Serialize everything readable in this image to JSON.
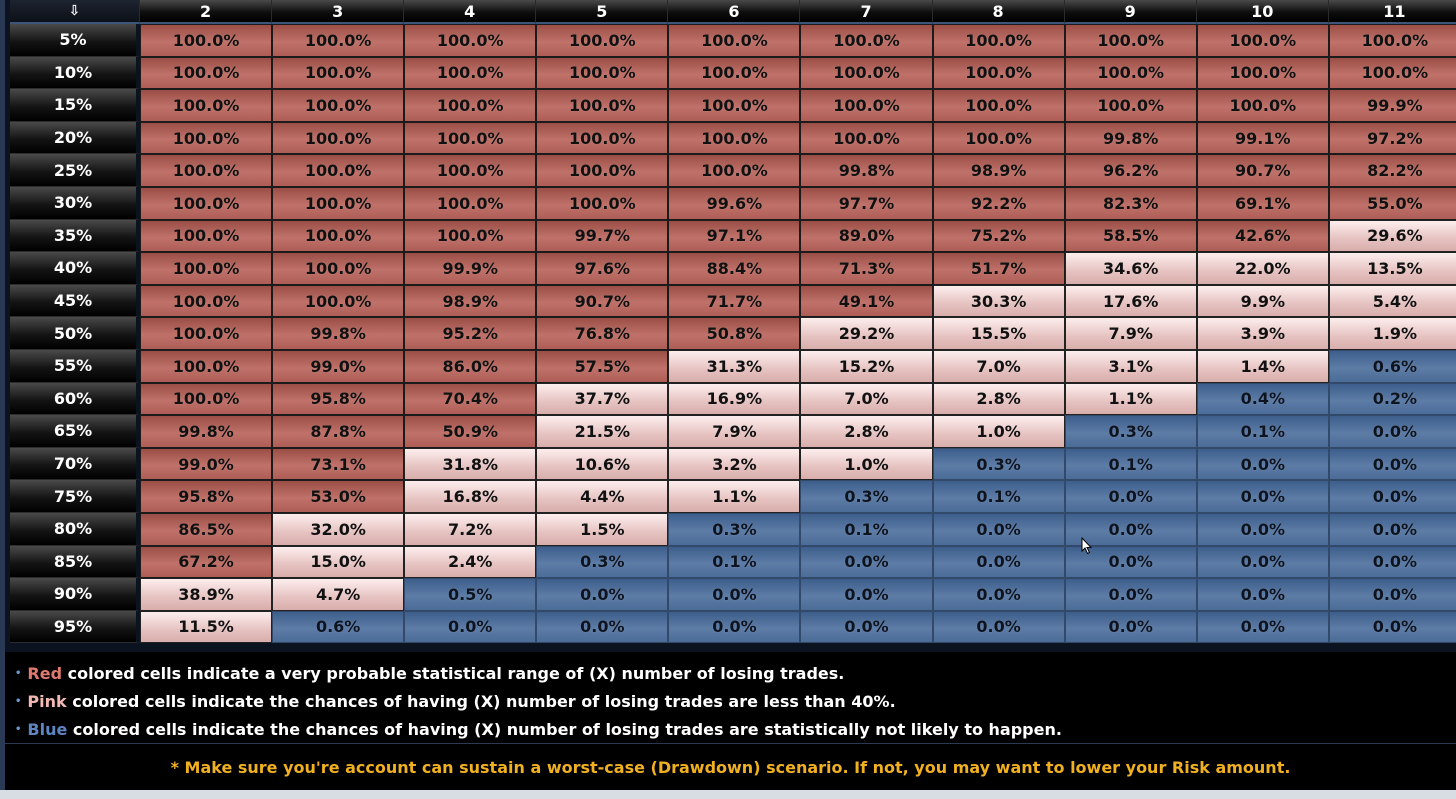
{
  "corner_label": "⇩",
  "columns": [
    "2",
    "3",
    "4",
    "5",
    "6",
    "7",
    "8",
    "9",
    "10",
    "11"
  ],
  "rows": [
    {
      "label": "5%",
      "cells": [
        "100.0%",
        "100.0%",
        "100.0%",
        "100.0%",
        "100.0%",
        "100.0%",
        "100.0%",
        "100.0%",
        "100.0%",
        "100.0%"
      ],
      "zones": [
        "r",
        "r",
        "r",
        "r",
        "r",
        "r",
        "r",
        "r",
        "r",
        "r"
      ]
    },
    {
      "label": "10%",
      "cells": [
        "100.0%",
        "100.0%",
        "100.0%",
        "100.0%",
        "100.0%",
        "100.0%",
        "100.0%",
        "100.0%",
        "100.0%",
        "100.0%"
      ],
      "zones": [
        "r",
        "r",
        "r",
        "r",
        "r",
        "r",
        "r",
        "r",
        "r",
        "r"
      ]
    },
    {
      "label": "15%",
      "cells": [
        "100.0%",
        "100.0%",
        "100.0%",
        "100.0%",
        "100.0%",
        "100.0%",
        "100.0%",
        "100.0%",
        "100.0%",
        "99.9%"
      ],
      "zones": [
        "r",
        "r",
        "r",
        "r",
        "r",
        "r",
        "r",
        "r",
        "r",
        "r"
      ]
    },
    {
      "label": "20%",
      "cells": [
        "100.0%",
        "100.0%",
        "100.0%",
        "100.0%",
        "100.0%",
        "100.0%",
        "100.0%",
        "99.8%",
        "99.1%",
        "97.2%"
      ],
      "zones": [
        "r",
        "r",
        "r",
        "r",
        "r",
        "r",
        "r",
        "r",
        "r",
        "r"
      ]
    },
    {
      "label": "25%",
      "cells": [
        "100.0%",
        "100.0%",
        "100.0%",
        "100.0%",
        "100.0%",
        "99.8%",
        "98.9%",
        "96.2%",
        "90.7%",
        "82.2%"
      ],
      "zones": [
        "r",
        "r",
        "r",
        "r",
        "r",
        "r",
        "r",
        "r",
        "r",
        "r"
      ]
    },
    {
      "label": "30%",
      "cells": [
        "100.0%",
        "100.0%",
        "100.0%",
        "100.0%",
        "99.6%",
        "97.7%",
        "92.2%",
        "82.3%",
        "69.1%",
        "55.0%"
      ],
      "zones": [
        "r",
        "r",
        "r",
        "r",
        "r",
        "r",
        "r",
        "r",
        "r",
        "r"
      ]
    },
    {
      "label": "35%",
      "cells": [
        "100.0%",
        "100.0%",
        "100.0%",
        "99.7%",
        "97.1%",
        "89.0%",
        "75.2%",
        "58.5%",
        "42.6%",
        "29.6%"
      ],
      "zones": [
        "r",
        "r",
        "r",
        "r",
        "r",
        "r",
        "r",
        "r",
        "r",
        "p"
      ]
    },
    {
      "label": "40%",
      "cells": [
        "100.0%",
        "100.0%",
        "99.9%",
        "97.6%",
        "88.4%",
        "71.3%",
        "51.7%",
        "34.6%",
        "22.0%",
        "13.5%"
      ],
      "zones": [
        "r",
        "r",
        "r",
        "r",
        "r",
        "r",
        "r",
        "p",
        "p",
        "p"
      ]
    },
    {
      "label": "45%",
      "cells": [
        "100.0%",
        "100.0%",
        "98.9%",
        "90.7%",
        "71.7%",
        "49.1%",
        "30.3%",
        "17.6%",
        "9.9%",
        "5.4%"
      ],
      "zones": [
        "r",
        "r",
        "r",
        "r",
        "r",
        "r",
        "p",
        "p",
        "p",
        "p"
      ]
    },
    {
      "label": "50%",
      "cells": [
        "100.0%",
        "99.8%",
        "95.2%",
        "76.8%",
        "50.8%",
        "29.2%",
        "15.5%",
        "7.9%",
        "3.9%",
        "1.9%"
      ],
      "zones": [
        "r",
        "r",
        "r",
        "r",
        "r",
        "p",
        "p",
        "p",
        "p",
        "p"
      ]
    },
    {
      "label": "55%",
      "cells": [
        "100.0%",
        "99.0%",
        "86.0%",
        "57.5%",
        "31.3%",
        "15.2%",
        "7.0%",
        "3.1%",
        "1.4%",
        "0.6%"
      ],
      "zones": [
        "r",
        "r",
        "r",
        "r",
        "p",
        "p",
        "p",
        "p",
        "p",
        "b"
      ]
    },
    {
      "label": "60%",
      "cells": [
        "100.0%",
        "95.8%",
        "70.4%",
        "37.7%",
        "16.9%",
        "7.0%",
        "2.8%",
        "1.1%",
        "0.4%",
        "0.2%"
      ],
      "zones": [
        "r",
        "r",
        "r",
        "p",
        "p",
        "p",
        "p",
        "p",
        "b",
        "b"
      ]
    },
    {
      "label": "65%",
      "cells": [
        "99.8%",
        "87.8%",
        "50.9%",
        "21.5%",
        "7.9%",
        "2.8%",
        "1.0%",
        "0.3%",
        "0.1%",
        "0.0%"
      ],
      "zones": [
        "r",
        "r",
        "r",
        "p",
        "p",
        "p",
        "p",
        "b",
        "b",
        "b"
      ]
    },
    {
      "label": "70%",
      "cells": [
        "99.0%",
        "73.1%",
        "31.8%",
        "10.6%",
        "3.2%",
        "1.0%",
        "0.3%",
        "0.1%",
        "0.0%",
        "0.0%"
      ],
      "zones": [
        "r",
        "r",
        "p",
        "p",
        "p",
        "p",
        "b",
        "b",
        "b",
        "b"
      ]
    },
    {
      "label": "75%",
      "cells": [
        "95.8%",
        "53.0%",
        "16.8%",
        "4.4%",
        "1.1%",
        "0.3%",
        "0.1%",
        "0.0%",
        "0.0%",
        "0.0%"
      ],
      "zones": [
        "r",
        "r",
        "p",
        "p",
        "p",
        "b",
        "b",
        "b",
        "b",
        "b"
      ]
    },
    {
      "label": "80%",
      "cells": [
        "86.5%",
        "32.0%",
        "7.2%",
        "1.5%",
        "0.3%",
        "0.1%",
        "0.0%",
        "0.0%",
        "0.0%",
        "0.0%"
      ],
      "zones": [
        "r",
        "p",
        "p",
        "p",
        "b",
        "b",
        "b",
        "b",
        "b",
        "b"
      ]
    },
    {
      "label": "85%",
      "cells": [
        "67.2%",
        "15.0%",
        "2.4%",
        "0.3%",
        "0.1%",
        "0.0%",
        "0.0%",
        "0.0%",
        "0.0%",
        "0.0%"
      ],
      "zones": [
        "r",
        "p",
        "p",
        "b",
        "b",
        "b",
        "b",
        "b",
        "b",
        "b"
      ]
    },
    {
      "label": "90%",
      "cells": [
        "38.9%",
        "4.7%",
        "0.5%",
        "0.0%",
        "0.0%",
        "0.0%",
        "0.0%",
        "0.0%",
        "0.0%",
        "0.0%"
      ],
      "zones": [
        "p",
        "p",
        "b",
        "b",
        "b",
        "b",
        "b",
        "b",
        "b",
        "b"
      ]
    },
    {
      "label": "95%",
      "cells": [
        "11.5%",
        "0.6%",
        "0.0%",
        "0.0%",
        "0.0%",
        "0.0%",
        "0.0%",
        "0.0%",
        "0.0%",
        "0.0%"
      ],
      "zones": [
        "p",
        "b",
        "b",
        "b",
        "b",
        "b",
        "b",
        "b",
        "b",
        "b"
      ]
    }
  ],
  "legend": {
    "red_word": "Red",
    "red_text": " colored cells indicate a very probable statistical range of (X) number of losing trades.",
    "pink_word": "Pink",
    "pink_text": " colored cells indicate the chances of having (X) number of losing trades are less than 40%.",
    "blue_word": "Blue",
    "blue_text": " colored cells indicate the chances of having (X) number of losing trades are statistically not likely to happen."
  },
  "warning": "* Make sure you're account can sustain a worst-case (Drawdown) scenario. If not, you may want to lower your Risk amount.",
  "colors": {
    "red_zone": "#b2625a",
    "pink_zone": "#e9c6c4",
    "blue_zone": "#56759f",
    "warning_text": "#f0b020"
  }
}
